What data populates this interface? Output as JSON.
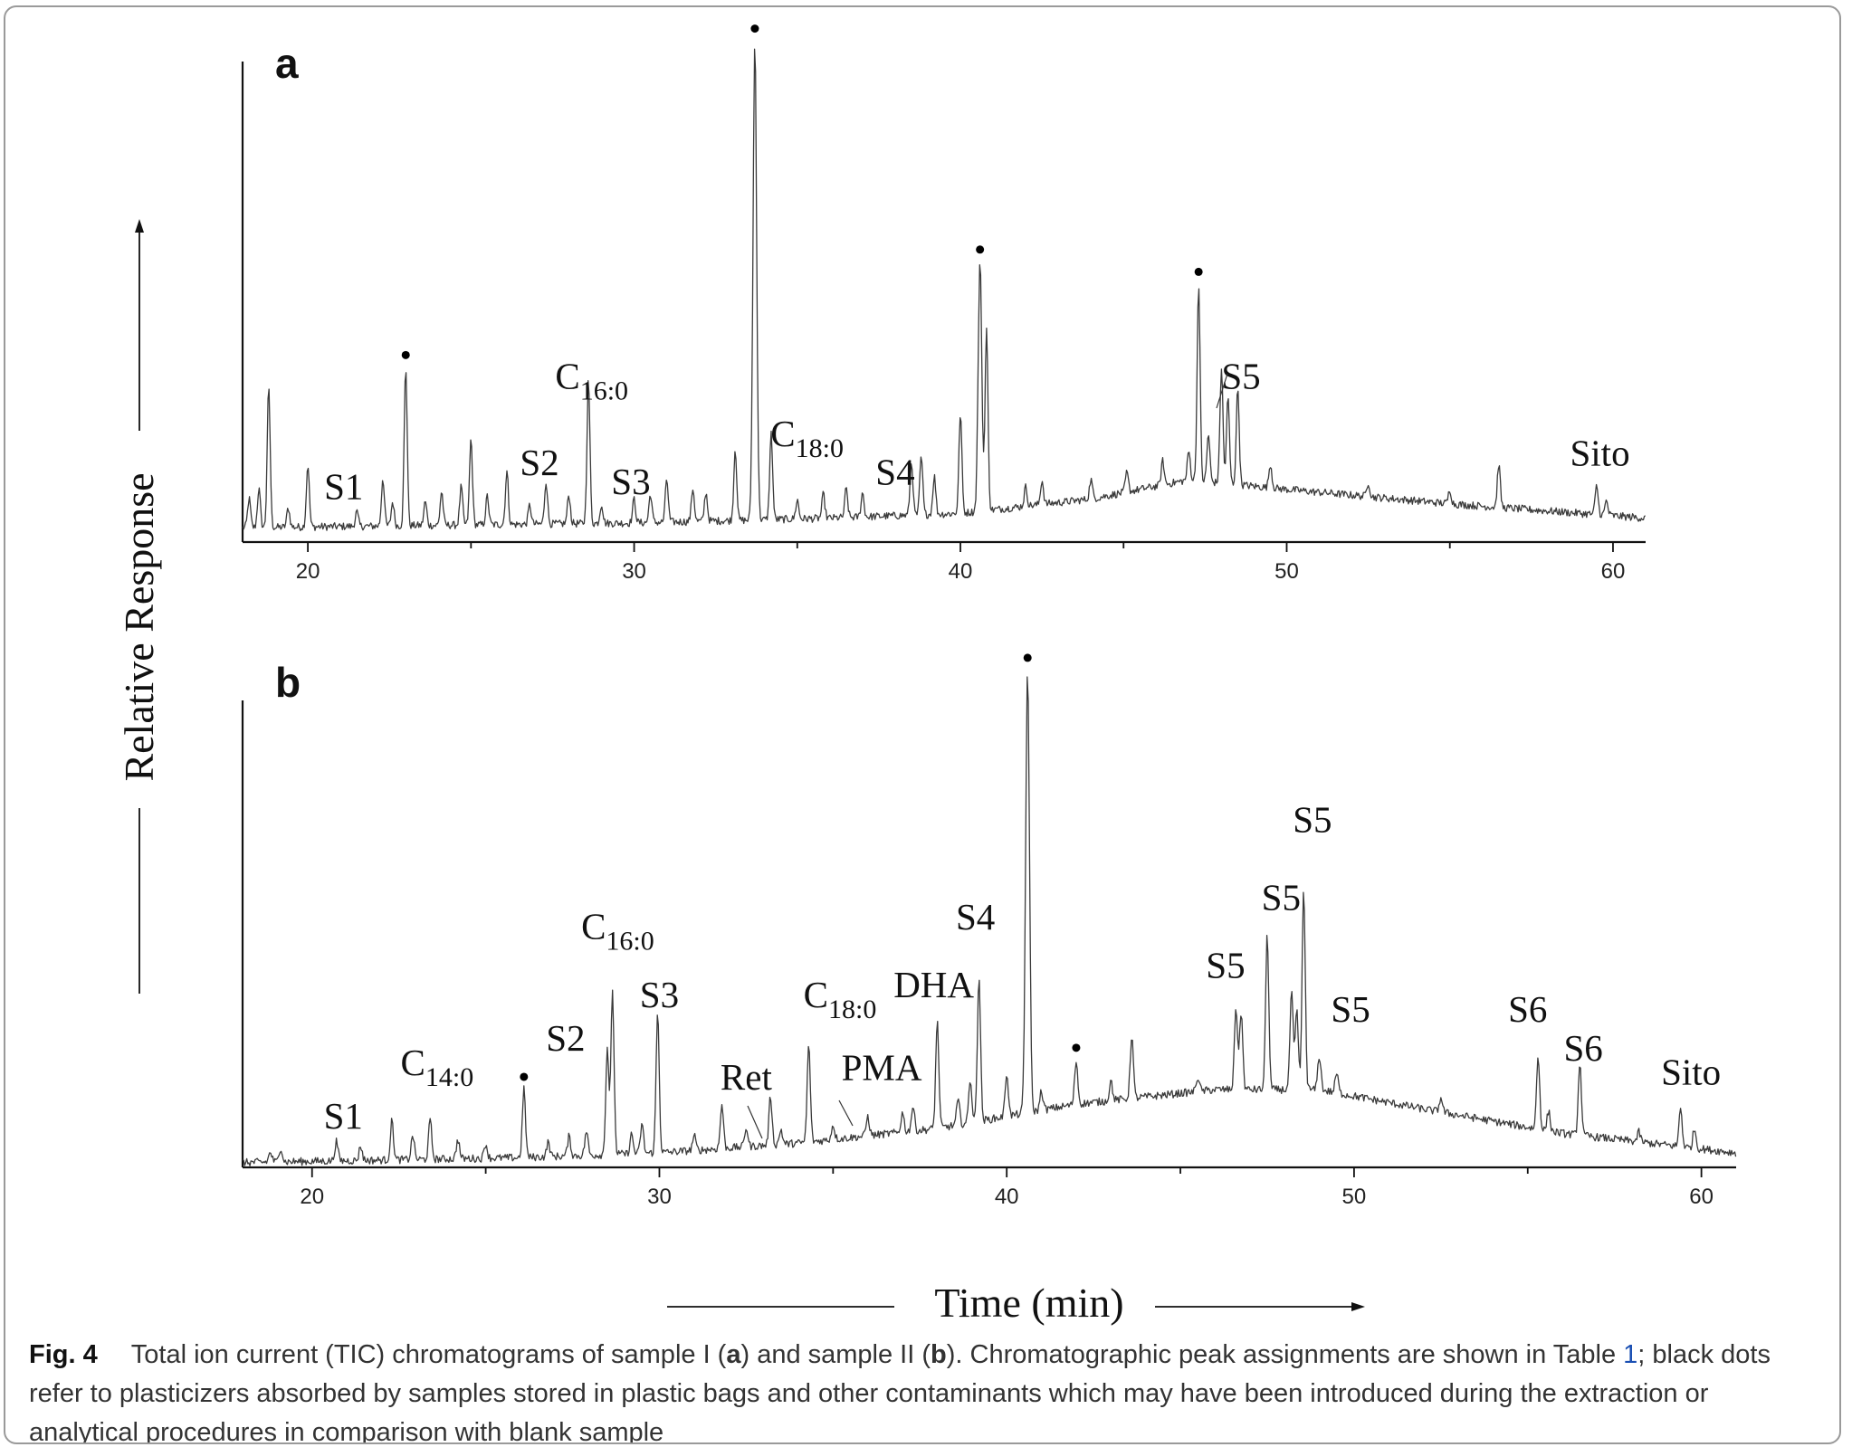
{
  "figure": {
    "caption": {
      "label": "Fig. 4",
      "text_before": "Total ion current (TIC) chromatograms of sample I (",
      "bold_a": "a",
      "text_mid": ") and sample II (",
      "bold_b": "b",
      "text_after": "). Chromatographic peak assignments are shown in Table ",
      "table_ref": "1",
      "text_end": "; black dots refer to plasticizers absorbed by samples stored in plastic bags and other contaminants which may have been introduced during the extraction or analytical procedures in comparison with blank sample"
    }
  },
  "chart_data": [
    {
      "type": "line",
      "panel_label": "a",
      "ylabel": "Relative Response",
      "xlabel": "Time (min)",
      "xlim": [
        18,
        61
      ],
      "ylim": [
        0,
        100
      ],
      "x_ticks": [
        20,
        30,
        40,
        50,
        60
      ],
      "grid": false,
      "baseline": [
        [
          18,
          3
        ],
        [
          24,
          3.5
        ],
        [
          30,
          4
        ],
        [
          36,
          5
        ],
        [
          40,
          6
        ],
        [
          44,
          9
        ],
        [
          47,
          13
        ],
        [
          50,
          11
        ],
        [
          55,
          8
        ],
        [
          61,
          5
        ]
      ],
      "peaks": [
        {
          "x": 18.2,
          "h": 6
        },
        {
          "x": 18.5,
          "h": 8
        },
        {
          "x": 18.8,
          "h": 29
        },
        {
          "x": 19.4,
          "h": 4
        },
        {
          "x": 20.0,
          "h": 13
        },
        {
          "x": 21.5,
          "h": 3
        },
        {
          "x": 22.3,
          "h": 10
        },
        {
          "x": 22.6,
          "h": 5
        },
        {
          "x": 23.0,
          "h": 33
        },
        {
          "x": 23.6,
          "h": 5
        },
        {
          "x": 24.1,
          "h": 7
        },
        {
          "x": 24.7,
          "h": 8
        },
        {
          "x": 25.0,
          "h": 18
        },
        {
          "x": 25.5,
          "h": 6
        },
        {
          "x": 26.1,
          "h": 11
        },
        {
          "x": 26.8,
          "h": 4
        },
        {
          "x": 27.3,
          "h": 9
        },
        {
          "x": 28.0,
          "h": 6
        },
        {
          "x": 28.6,
          "h": 30
        },
        {
          "x": 29.0,
          "h": 4
        },
        {
          "x": 30.0,
          "h": 5
        },
        {
          "x": 30.5,
          "h": 6
        },
        {
          "x": 31.0,
          "h": 9
        },
        {
          "x": 31.8,
          "h": 7
        },
        {
          "x": 32.2,
          "h": 6
        },
        {
          "x": 33.1,
          "h": 15
        },
        {
          "x": 33.7,
          "h": 100
        },
        {
          "x": 34.2,
          "h": 18
        },
        {
          "x": 35.0,
          "h": 4
        },
        {
          "x": 35.8,
          "h": 5
        },
        {
          "x": 36.5,
          "h": 6
        },
        {
          "x": 37.0,
          "h": 5
        },
        {
          "x": 38.5,
          "h": 11
        },
        {
          "x": 38.8,
          "h": 12
        },
        {
          "x": 39.2,
          "h": 8
        },
        {
          "x": 40.0,
          "h": 21
        },
        {
          "x": 40.6,
          "h": 52
        },
        {
          "x": 40.8,
          "h": 38
        },
        {
          "x": 42.0,
          "h": 4
        },
        {
          "x": 42.5,
          "h": 5
        },
        {
          "x": 44.0,
          "h": 4
        },
        {
          "x": 45.1,
          "h": 4
        },
        {
          "x": 46.2,
          "h": 5
        },
        {
          "x": 47.0,
          "h": 6
        },
        {
          "x": 47.3,
          "h": 41
        },
        {
          "x": 47.6,
          "h": 10
        },
        {
          "x": 48.0,
          "h": 24
        },
        {
          "x": 48.2,
          "h": 18
        },
        {
          "x": 48.5,
          "h": 20
        },
        {
          "x": 49.5,
          "h": 5
        },
        {
          "x": 52.5,
          "h": 3
        },
        {
          "x": 55.0,
          "h": 3
        },
        {
          "x": 56.5,
          "h": 9
        },
        {
          "x": 59.5,
          "h": 6
        },
        {
          "x": 59.8,
          "h": 3
        }
      ],
      "annotations": [
        {
          "text": "S1",
          "x": 21.1,
          "y": 9
        },
        {
          "text": "S2",
          "x": 27.1,
          "y": 14
        },
        {
          "text": "C",
          "sub": "16:0",
          "x": 28.7,
          "y": 32
        },
        {
          "text": "S3",
          "x": 29.9,
          "y": 10
        },
        {
          "text": "C",
          "sub": "18:0",
          "x": 35.3,
          "y": 20
        },
        {
          "text": "S4",
          "x": 38.0,
          "y": 12
        },
        {
          "text": "S5",
          "x": 48.6,
          "y": 32
        },
        {
          "text": "Sito",
          "x": 59.6,
          "y": 16
        }
      ],
      "contaminant_dots": [
        23.0,
        33.7,
        40.6,
        47.3
      ]
    },
    {
      "type": "line",
      "panel_label": "b",
      "xlim": [
        18,
        61
      ],
      "ylim": [
        0,
        100
      ],
      "x_ticks": [
        20,
        30,
        40,
        50,
        60
      ],
      "grid": false,
      "baseline": [
        [
          18,
          1
        ],
        [
          22,
          1.5
        ],
        [
          26,
          2
        ],
        [
          30,
          3
        ],
        [
          34,
          5
        ],
        [
          38,
          8
        ],
        [
          42,
          13
        ],
        [
          46,
          16
        ],
        [
          49,
          16
        ],
        [
          52,
          12
        ],
        [
          56,
          7
        ],
        [
          61,
          3
        ]
      ],
      "peaks": [
        {
          "x": 18.8,
          "h": 2
        },
        {
          "x": 19.1,
          "h": 3
        },
        {
          "x": 20.7,
          "h": 4
        },
        {
          "x": 21.4,
          "h": 3
        },
        {
          "x": 22.3,
          "h": 8
        },
        {
          "x": 22.9,
          "h": 5
        },
        {
          "x": 23.4,
          "h": 8
        },
        {
          "x": 24.2,
          "h": 4
        },
        {
          "x": 25.0,
          "h": 3
        },
        {
          "x": 26.1,
          "h": 14
        },
        {
          "x": 26.8,
          "h": 3
        },
        {
          "x": 27.4,
          "h": 4
        },
        {
          "x": 27.9,
          "h": 5
        },
        {
          "x": 28.5,
          "h": 22
        },
        {
          "x": 28.65,
          "h": 33
        },
        {
          "x": 29.2,
          "h": 4
        },
        {
          "x": 29.5,
          "h": 6
        },
        {
          "x": 29.95,
          "h": 29
        },
        {
          "x": 31.0,
          "h": 3
        },
        {
          "x": 31.8,
          "h": 9
        },
        {
          "x": 32.5,
          "h": 4
        },
        {
          "x": 33.2,
          "h": 10
        },
        {
          "x": 33.5,
          "h": 3
        },
        {
          "x": 34.3,
          "h": 20
        },
        {
          "x": 35.0,
          "h": 3
        },
        {
          "x": 36.0,
          "h": 4
        },
        {
          "x": 37.0,
          "h": 4
        },
        {
          "x": 37.3,
          "h": 5
        },
        {
          "x": 38.0,
          "h": 22
        },
        {
          "x": 38.6,
          "h": 5
        },
        {
          "x": 38.95,
          "h": 9
        },
        {
          "x": 39.2,
          "h": 30
        },
        {
          "x": 40.0,
          "h": 9
        },
        {
          "x": 40.6,
          "h": 91
        },
        {
          "x": 41.0,
          "h": 4
        },
        {
          "x": 42.0,
          "h": 9
        },
        {
          "x": 43.0,
          "h": 4
        },
        {
          "x": 43.6,
          "h": 13
        },
        {
          "x": 45.5,
          "h": 3
        },
        {
          "x": 46.6,
          "h": 17
        },
        {
          "x": 46.75,
          "h": 16
        },
        {
          "x": 47.5,
          "h": 32
        },
        {
          "x": 48.2,
          "h": 20
        },
        {
          "x": 48.35,
          "h": 16
        },
        {
          "x": 48.55,
          "h": 41
        },
        {
          "x": 49.0,
          "h": 7
        },
        {
          "x": 49.5,
          "h": 4
        },
        {
          "x": 52.5,
          "h": 3
        },
        {
          "x": 55.3,
          "h": 15
        },
        {
          "x": 55.6,
          "h": 4
        },
        {
          "x": 56.5,
          "h": 15
        },
        {
          "x": 58.2,
          "h": 2
        },
        {
          "x": 59.4,
          "h": 8
        },
        {
          "x": 59.8,
          "h": 4
        }
      ],
      "annotations": [
        {
          "text": "S1",
          "x": 20.9,
          "y": 8
        },
        {
          "text": "C",
          "sub": "14:0",
          "x": 23.6,
          "y": 19
        },
        {
          "text": "S2",
          "x": 27.3,
          "y": 24
        },
        {
          "text": "C",
          "sub": "16:0",
          "x": 28.8,
          "y": 47
        },
        {
          "text": "S3",
          "x": 30.0,
          "y": 33
        },
        {
          "text": "Ret",
          "x": 32.5,
          "y": 16
        },
        {
          "text": "C",
          "sub": "18:0",
          "x": 35.2,
          "y": 33
        },
        {
          "text": "PMA",
          "x": 36.4,
          "y": 18
        },
        {
          "text": "DHA",
          "x": 37.9,
          "y": 35
        },
        {
          "text": "S4",
          "x": 39.1,
          "y": 49
        },
        {
          "text": "S5",
          "x": 46.3,
          "y": 39
        },
        {
          "text": "S5",
          "x": 47.9,
          "y": 53
        },
        {
          "text": "S5",
          "x": 48.8,
          "y": 69
        },
        {
          "text": "S5",
          "x": 49.9,
          "y": 30
        },
        {
          "text": "S6",
          "x": 55.0,
          "y": 30
        },
        {
          "text": "S6",
          "x": 56.6,
          "y": 22
        },
        {
          "text": "Sito",
          "x": 59.7,
          "y": 17
        }
      ],
      "contaminant_dots": [
        26.1,
        40.6,
        42.0
      ]
    }
  ]
}
